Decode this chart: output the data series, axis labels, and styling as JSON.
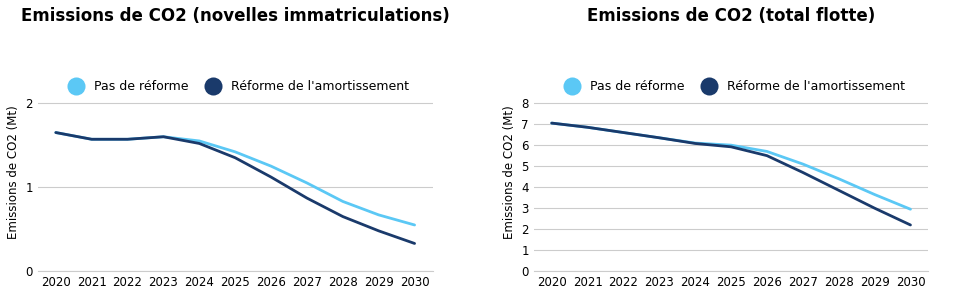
{
  "left_title": "Emissions de CO2 (novelles immatriculations)",
  "right_title": "Emissions de CO2 (total flotte)",
  "ylabel": "Emissions de CO2 (Mt)",
  "legend_label_light": "Pas de réforme",
  "legend_label_dark": "Réforme de l'amortissement",
  "color_light": "#5bc8f5",
  "color_dark": "#1a3a6b",
  "years": [
    2020,
    2021,
    2022,
    2023,
    2024,
    2025,
    2026,
    2027,
    2028,
    2029,
    2030
  ],
  "left_light": [
    1.65,
    1.57,
    1.57,
    1.6,
    1.55,
    1.42,
    1.25,
    1.05,
    0.83,
    0.67,
    0.55
  ],
  "left_dark": [
    1.65,
    1.57,
    1.57,
    1.6,
    1.52,
    1.35,
    1.12,
    0.87,
    0.65,
    0.48,
    0.33
  ],
  "right_light": [
    7.05,
    6.85,
    6.6,
    6.35,
    6.1,
    6.0,
    5.7,
    5.1,
    4.4,
    3.65,
    2.95
  ],
  "right_dark": [
    7.05,
    6.85,
    6.6,
    6.35,
    6.08,
    5.92,
    5.5,
    4.7,
    3.85,
    3.0,
    2.2
  ],
  "left_ylim": [
    0,
    2.35
  ],
  "left_yticks": [
    0,
    1,
    2
  ],
  "right_ylim": [
    0,
    9.4
  ],
  "right_yticks": [
    0,
    1,
    2,
    3,
    4,
    5,
    6,
    7,
    8
  ],
  "background_color": "#ffffff",
  "grid_color": "#cccccc",
  "title_fontsize": 12,
  "label_fontsize": 8.5,
  "tick_fontsize": 8.5,
  "legend_fontsize": 9,
  "line_width": 2.0
}
